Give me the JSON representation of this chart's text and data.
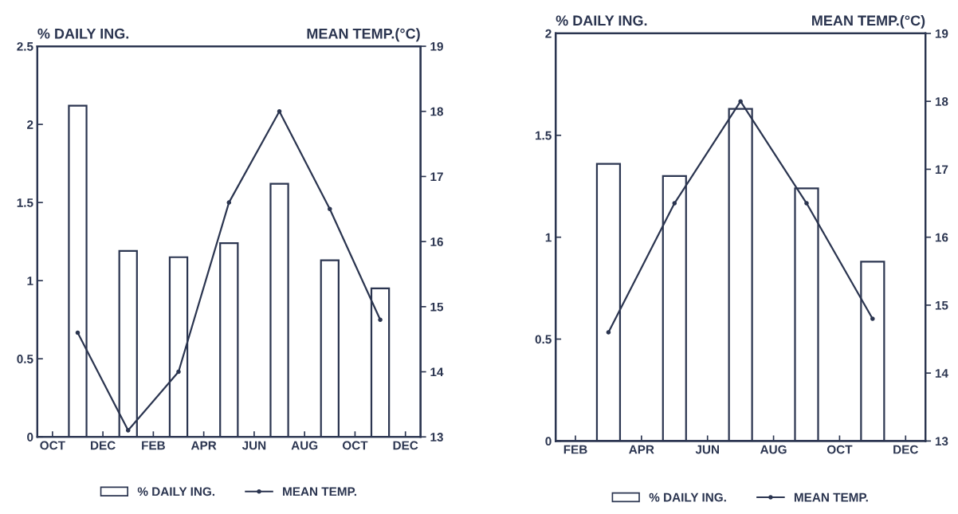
{
  "chart_data": [
    {
      "type": "bar",
      "ylabel": "% DAILY ING.",
      "y2label": "MEAN TEMP.(°C)",
      "categories": [
        "OCT",
        null,
        "DEC",
        null,
        "FEB",
        null,
        "APR",
        null,
        "JUN",
        null,
        "AUG",
        null,
        "OCT",
        null,
        "DEC"
      ],
      "series": [
        {
          "name": "% DAILY ING.",
          "color": "#ffffff",
          "values": [
            null,
            2.12,
            null,
            1.19,
            null,
            1.15,
            null,
            1.24,
            null,
            1.62,
            null,
            1.13,
            null,
            0.95,
            null
          ]
        },
        {
          "name": "MEAN TEMP.",
          "type": "line",
          "axis": "y2",
          "color": "#2b3550",
          "values": [
            null,
            14.6,
            null,
            13.1,
            null,
            14.0,
            null,
            16.6,
            null,
            18.0,
            null,
            16.5,
            null,
            14.8,
            null
          ]
        }
      ],
      "ylim": [
        0,
        2.5
      ],
      "yticks": [
        0,
        0.5,
        1,
        1.5,
        2,
        2.5
      ],
      "y2lim": [
        13,
        19
      ],
      "y2ticks": [
        13,
        14,
        15,
        16,
        17,
        18,
        19
      ],
      "legend": "bottom",
      "marker": "circle",
      "line_style": "solid"
    },
    {
      "type": "bar",
      "ylabel": "% DAILY ING.",
      "y2label": "MEAN TEMP.(°C)",
      "categories": [
        "FEB",
        null,
        "APR",
        null,
        "JUN",
        null,
        "AUG",
        null,
        "OCT",
        null,
        "DEC"
      ],
      "series": [
        {
          "name": "% DAILY ING.",
          "color": "#ffffff",
          "values": [
            null,
            1.36,
            null,
            1.3,
            null,
            1.63,
            null,
            1.24,
            null,
            0.88,
            null
          ]
        },
        {
          "name": "MEAN TEMP.",
          "type": "line",
          "axis": "y2",
          "color": "#2b3550",
          "values": [
            null,
            14.6,
            null,
            16.5,
            null,
            18.0,
            null,
            16.5,
            null,
            14.8,
            null
          ]
        }
      ],
      "ylim": [
        0,
        2
      ],
      "yticks": [
        0,
        0.5,
        1,
        1.5,
        2
      ],
      "y2lim": [
        13,
        19
      ],
      "y2ticks": [
        13,
        14,
        15,
        16,
        17,
        18,
        19
      ],
      "legend": "bottom",
      "marker": "circle",
      "line_style": "solid"
    }
  ]
}
